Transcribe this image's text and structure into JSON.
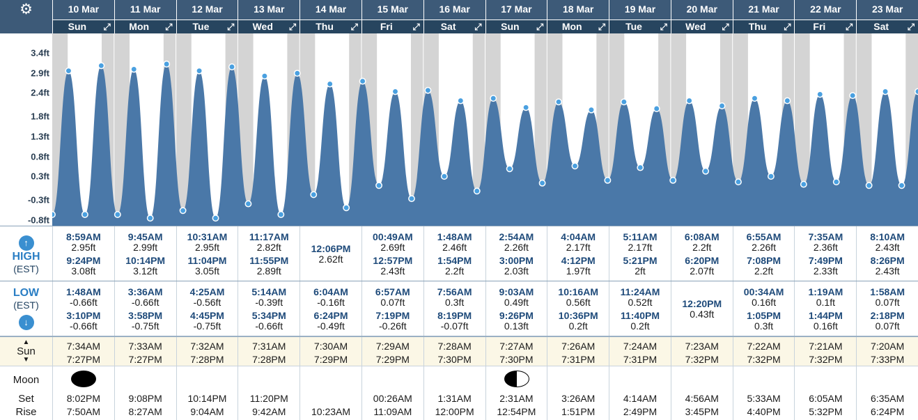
{
  "header": {
    "settings_icon": "gear-icon",
    "expand_icon": "expand-arrows-icon"
  },
  "days": [
    {
      "date": "10 Mar",
      "dow": "Sun"
    },
    {
      "date": "11 Mar",
      "dow": "Mon"
    },
    {
      "date": "12 Mar",
      "dow": "Tue"
    },
    {
      "date": "13 Mar",
      "dow": "Wed"
    },
    {
      "date": "14 Mar",
      "dow": "Thu"
    },
    {
      "date": "15 Mar",
      "dow": "Fri"
    },
    {
      "date": "16 Mar",
      "dow": "Sat"
    },
    {
      "date": "17 Mar",
      "dow": "Sun"
    },
    {
      "date": "18 Mar",
      "dow": "Mon"
    },
    {
      "date": "19 Mar",
      "dow": "Tue"
    },
    {
      "date": "20 Mar",
      "dow": "Wed"
    },
    {
      "date": "21 Mar",
      "dow": "Thu"
    },
    {
      "date": "22 Mar",
      "dow": "Fri"
    },
    {
      "date": "23 Mar",
      "dow": "Sat"
    }
  ],
  "chart_data": {
    "type": "area",
    "yticks": [
      "3.4ft",
      "2.9ft",
      "2.4ft",
      "1.8ft",
      "1.3ft",
      "0.8ft",
      "0.3ft",
      "-0.3ft",
      "-0.8ft"
    ],
    "ylim": [
      -0.8,
      3.4
    ],
    "unit": "ft",
    "series": [
      {
        "values": [
          -0.66,
          2.95,
          -0.66,
          3.08,
          -0.66,
          2.99,
          -0.75,
          3.12,
          -0.56,
          2.95,
          -0.75,
          3.05,
          -0.39,
          2.82,
          -0.66,
          2.89,
          -0.16,
          2.62,
          -0.49,
          2.69,
          0.07,
          2.43,
          -0.26,
          2.46,
          0.3,
          2.2,
          -0.07,
          2.26,
          0.49,
          2.03,
          0.13,
          2.17,
          0.56,
          1.97,
          0.2,
          2.17,
          0.52,
          2.0,
          0.2,
          2.2,
          0.43,
          2.07,
          0.16,
          2.26,
          0.3,
          2.2,
          0.1,
          2.36,
          0.16,
          2.33,
          0.07,
          2.43,
          0.07,
          2.43
        ]
      }
    ],
    "colors": {
      "fill": "#4a78a8",
      "night": "#d4d4d4",
      "point": "#4aa0e0"
    }
  },
  "labels": {
    "high": "HIGH",
    "high_tz": "(EST)",
    "low": "LOW",
    "low_tz": "(EST)",
    "sun": "Sun",
    "moon": "Moon",
    "set": "Set",
    "rise": "Rise",
    "up_icon": "arrow-up-icon",
    "down_icon": "arrow-down-icon"
  },
  "high": [
    [
      {
        "t": "8:59AM",
        "v": "2.95ft"
      },
      {
        "t": "9:24PM",
        "v": "3.08ft"
      }
    ],
    [
      {
        "t": "9:45AM",
        "v": "2.99ft"
      },
      {
        "t": "10:14PM",
        "v": "3.12ft"
      }
    ],
    [
      {
        "t": "10:31AM",
        "v": "2.95ft"
      },
      {
        "t": "11:04PM",
        "v": "3.05ft"
      }
    ],
    [
      {
        "t": "11:17AM",
        "v": "2.82ft"
      },
      {
        "t": "11:55PM",
        "v": "2.89ft"
      }
    ],
    [
      {
        "t": "12:06PM",
        "v": "2.62ft"
      }
    ],
    [
      {
        "t": "00:49AM",
        "v": "2.69ft"
      },
      {
        "t": "12:57PM",
        "v": "2.43ft"
      }
    ],
    [
      {
        "t": "1:48AM",
        "v": "2.46ft"
      },
      {
        "t": "1:54PM",
        "v": "2.2ft"
      }
    ],
    [
      {
        "t": "2:54AM",
        "v": "2.26ft"
      },
      {
        "t": "3:00PM",
        "v": "2.03ft"
      }
    ],
    [
      {
        "t": "4:04AM",
        "v": "2.17ft"
      },
      {
        "t": "4:12PM",
        "v": "1.97ft"
      }
    ],
    [
      {
        "t": "5:11AM",
        "v": "2.17ft"
      },
      {
        "t": "5:21PM",
        "v": "2ft"
      }
    ],
    [
      {
        "t": "6:08AM",
        "v": "2.2ft"
      },
      {
        "t": "6:20PM",
        "v": "2.07ft"
      }
    ],
    [
      {
        "t": "6:55AM",
        "v": "2.26ft"
      },
      {
        "t": "7:08PM",
        "v": "2.2ft"
      }
    ],
    [
      {
        "t": "7:35AM",
        "v": "2.36ft"
      },
      {
        "t": "7:49PM",
        "v": "2.33ft"
      }
    ],
    [
      {
        "t": "8:10AM",
        "v": "2.43ft"
      },
      {
        "t": "8:26PM",
        "v": "2.43ft"
      }
    ]
  ],
  "low": [
    [
      {
        "t": "1:48AM",
        "v": "-0.66ft"
      },
      {
        "t": "3:10PM",
        "v": "-0.66ft"
      }
    ],
    [
      {
        "t": "3:36AM",
        "v": "-0.66ft"
      },
      {
        "t": "3:58PM",
        "v": "-0.75ft"
      }
    ],
    [
      {
        "t": "4:25AM",
        "v": "-0.56ft"
      },
      {
        "t": "4:45PM",
        "v": "-0.75ft"
      }
    ],
    [
      {
        "t": "5:14AM",
        "v": "-0.39ft"
      },
      {
        "t": "5:34PM",
        "v": "-0.66ft"
      }
    ],
    [
      {
        "t": "6:04AM",
        "v": "-0.16ft"
      },
      {
        "t": "6:24PM",
        "v": "-0.49ft"
      }
    ],
    [
      {
        "t": "6:57AM",
        "v": "0.07ft"
      },
      {
        "t": "7:19PM",
        "v": "-0.26ft"
      }
    ],
    [
      {
        "t": "7:56AM",
        "v": "0.3ft"
      },
      {
        "t": "8:19PM",
        "v": "-0.07ft"
      }
    ],
    [
      {
        "t": "9:03AM",
        "v": "0.49ft"
      },
      {
        "t": "9:26PM",
        "v": "0.13ft"
      }
    ],
    [
      {
        "t": "10:16AM",
        "v": "0.56ft"
      },
      {
        "t": "10:36PM",
        "v": "0.2ft"
      }
    ],
    [
      {
        "t": "11:24AM",
        "v": "0.52ft"
      },
      {
        "t": "11:40PM",
        "v": "0.2ft"
      }
    ],
    [
      {
        "t": "12:20PM",
        "v": "0.43ft"
      }
    ],
    [
      {
        "t": "00:34AM",
        "v": "0.16ft"
      },
      {
        "t": "1:05PM",
        "v": "0.3ft"
      }
    ],
    [
      {
        "t": "1:19AM",
        "v": "0.1ft"
      },
      {
        "t": "1:44PM",
        "v": "0.16ft"
      }
    ],
    [
      {
        "t": "1:58AM",
        "v": "0.07ft"
      },
      {
        "t": "2:18PM",
        "v": "0.07ft"
      }
    ]
  ],
  "sun": [
    [
      "7:34AM",
      "7:27PM"
    ],
    [
      "7:33AM",
      "7:27PM"
    ],
    [
      "7:32AM",
      "7:28PM"
    ],
    [
      "7:31AM",
      "7:28PM"
    ],
    [
      "7:30AM",
      "7:29PM"
    ],
    [
      "7:29AM",
      "7:29PM"
    ],
    [
      "7:28AM",
      "7:30PM"
    ],
    [
      "7:27AM",
      "7:30PM"
    ],
    [
      "7:26AM",
      "7:31PM"
    ],
    [
      "7:24AM",
      "7:31PM"
    ],
    [
      "7:23AM",
      "7:32PM"
    ],
    [
      "7:22AM",
      "7:32PM"
    ],
    [
      "7:21AM",
      "7:32PM"
    ],
    [
      "7:20AM",
      "7:33PM"
    ]
  ],
  "moon": [
    {
      "phase": "new-moon-icon",
      "set": "8:02PM",
      "rise": "7:50AM"
    },
    {
      "phase": "",
      "set": "9:08PM",
      "rise": "8:27AM"
    },
    {
      "phase": "",
      "set": "10:14PM",
      "rise": "9:04AM"
    },
    {
      "phase": "",
      "set": "11:20PM",
      "rise": "9:42AM"
    },
    {
      "phase": "",
      "set": "",
      "rise": "10:23AM"
    },
    {
      "phase": "",
      "set": "00:26AM",
      "rise": "11:09AM"
    },
    {
      "phase": "",
      "set": "1:31AM",
      "rise": "12:00PM"
    },
    {
      "phase": "first-quarter-icon",
      "set": "2:31AM",
      "rise": "12:54PM"
    },
    {
      "phase": "",
      "set": "3:26AM",
      "rise": "1:51PM"
    },
    {
      "phase": "",
      "set": "4:14AM",
      "rise": "2:49PM"
    },
    {
      "phase": "",
      "set": "4:56AM",
      "rise": "3:45PM"
    },
    {
      "phase": "",
      "set": "5:33AM",
      "rise": "4:40PM"
    },
    {
      "phase": "",
      "set": "6:05AM",
      "rise": "5:32PM"
    },
    {
      "phase": "",
      "set": "6:35AM",
      "rise": "6:24PM"
    }
  ]
}
